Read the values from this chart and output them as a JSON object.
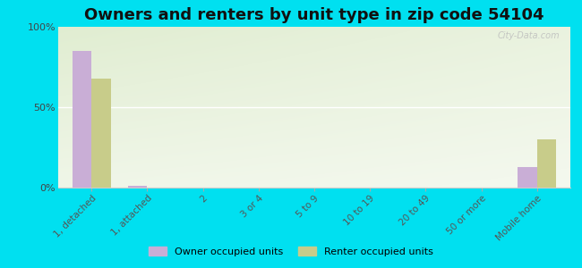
{
  "title": "Owners and renters by unit type in zip code 54104",
  "categories": [
    "1, detached",
    "1, attached",
    "2",
    "3 or 4",
    "5 to 9",
    "10 to 19",
    "20 to 49",
    "50 or more",
    "Mobile home"
  ],
  "owner_values": [
    85,
    1,
    0,
    0,
    0,
    0,
    0,
    0,
    13
  ],
  "renter_values": [
    68,
    0,
    0,
    0,
    0,
    0,
    0,
    0,
    30
  ],
  "owner_color": "#c9aed6",
  "renter_color": "#c8cc8a",
  "background_color": "#00e0f0",
  "ylim": [
    0,
    100
  ],
  "yticks": [
    0,
    50,
    100
  ],
  "ytick_labels": [
    "0%",
    "50%",
    "100%"
  ],
  "bar_width": 0.35,
  "legend_owner": "Owner occupied units",
  "legend_renter": "Renter occupied units",
  "title_fontsize": 13,
  "watermark": "City-Data.com"
}
